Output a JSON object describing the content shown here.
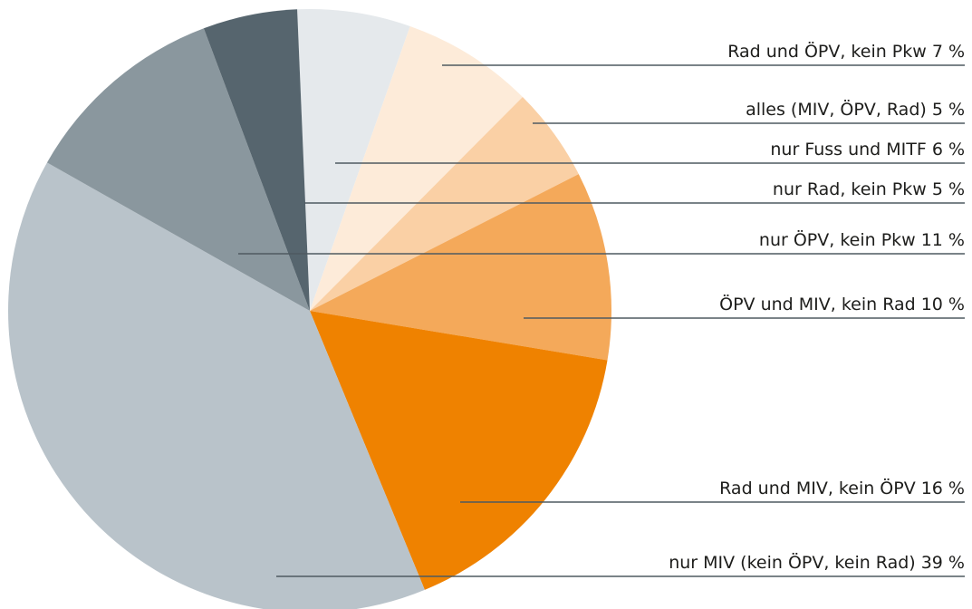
{
  "chart_data": {
    "type": "pie",
    "categories": [
      "nur Fuss und MITF",
      "Rad und ÖPV, kein Pkw",
      "alles (MIV, ÖPV, Rad)",
      "ÖPV und MIV, kein Rad",
      "Rad und MIV, kein ÖPV",
      "nur MIV (kein ÖPV, kein Rad)",
      "nur ÖPV, kein Pkw",
      "nur Rad, kein Pkw"
    ],
    "values": [
      6,
      7,
      5,
      10,
      16,
      39,
      11,
      5
    ],
    "value_labels": [
      "6 %",
      "7 %",
      "5 %",
      "10 %",
      "16 %",
      "39 %",
      "11 %",
      "5 %"
    ],
    "colors": [
      "#e5e9ec",
      "#fdebd9",
      "#fad0a5",
      "#f4a95a",
      "#ef8200",
      "#b9c3ca",
      "#8a979e",
      "#56656e"
    ]
  }
}
